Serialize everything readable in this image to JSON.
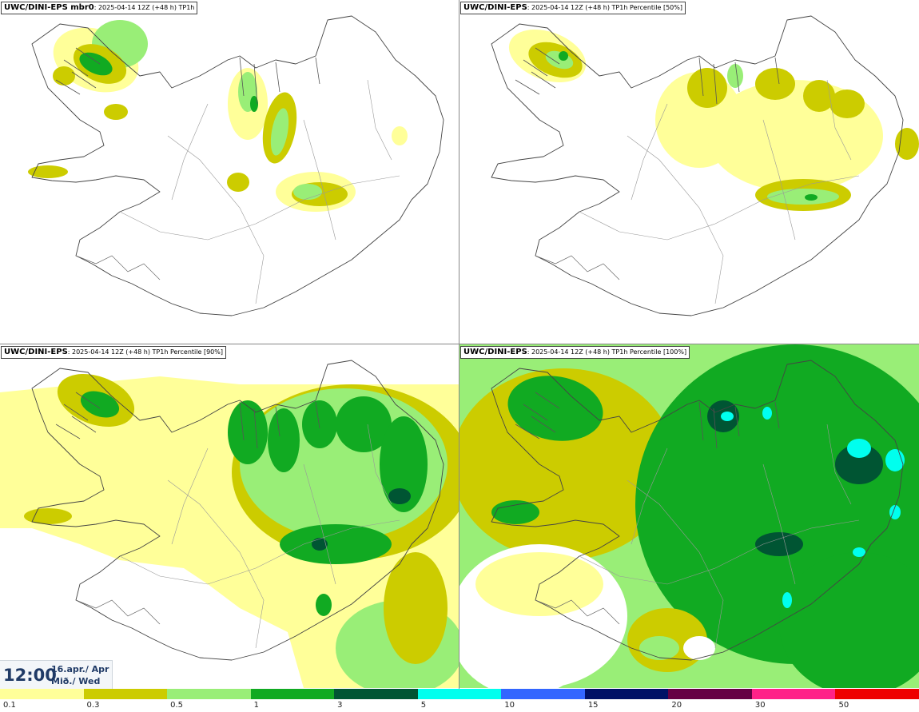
{
  "panels": [
    {
      "model": "UWC/DINI-EPS mbr0",
      "info": ": 2025-04-14 12Z (+48 h) TP1h",
      "level": 0
    },
    {
      "model": "UWC/DINI-EPS",
      "info": ": 2025-04-14 12Z (+48 h) TP1h Percentile [50%]",
      "level": 1
    },
    {
      "model": "UWC/DINI-EPS",
      "info": ": 2025-04-14 12Z (+48 h) TP1h Percentile [90%]",
      "level": 2
    },
    {
      "model": "UWC/DINI-EPS",
      "info": ": 2025-04-14 12Z (+48 h) TP1h Percentile [100%]",
      "level": 3
    }
  ],
  "time": {
    "clock": "12:00",
    "date_line": "16.apr./ Apr",
    "day_line": "Mið./ Wed"
  },
  "legend": {
    "colors": [
      "#ffff99",
      "#cccc00",
      "#99ee77",
      "#11aa22",
      "#005533",
      "#00ffee",
      "#3366ff",
      "#001166",
      "#660044",
      "#ff2288",
      "#ee0000"
    ],
    "ticks": [
      "0.1",
      "0.3",
      "0.5",
      "1",
      "3",
      "5",
      "10",
      "15",
      "20",
      "30",
      "50"
    ]
  },
  "colors": {
    "yellow": "#ffff99",
    "olive": "#cccc00",
    "lightgreen": "#99ee77",
    "green": "#11aa22",
    "darkgreen": "#005533",
    "cyan": "#00ffee"
  }
}
